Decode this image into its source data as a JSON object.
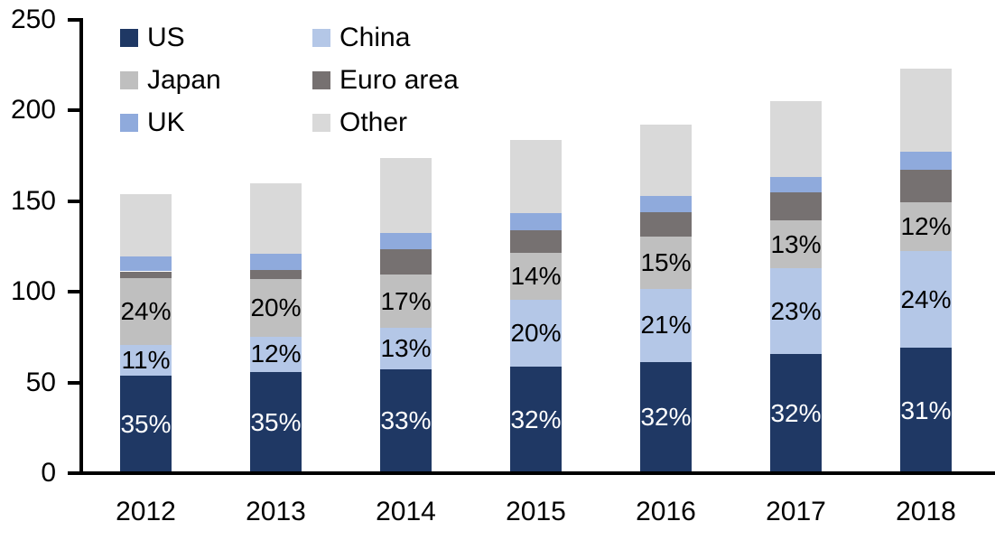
{
  "chart_data": {
    "type": "bar",
    "stacked": true,
    "title": "",
    "xlabel": "",
    "ylabel": "",
    "categories": [
      "2012",
      "2013",
      "2014",
      "2015",
      "2016",
      "2017",
      "2018"
    ],
    "series": [
      {
        "name": "US",
        "color": "#1F3864",
        "label_color": "#FFFFFF",
        "values": [
          53.9,
          56.0,
          57.4,
          58.9,
          61.4,
          65.6,
          69.1
        ],
        "labels": [
          "35%",
          "35%",
          "33%",
          "32%",
          "32%",
          "32%",
          "31%"
        ]
      },
      {
        "name": "China",
        "color": "#B4C7E7",
        "label_color": "#000000",
        "values": [
          16.9,
          19.2,
          22.6,
          36.8,
          40.3,
          47.2,
          53.5
        ],
        "labels": [
          "11%",
          "12%",
          "13%",
          "20%",
          "21%",
          "23%",
          "24%"
        ]
      },
      {
        "name": "Japan",
        "color": "#BFBFBF",
        "label_color": "#000000",
        "values": [
          37.0,
          32.0,
          29.6,
          25.8,
          28.8,
          26.7,
          26.8
        ],
        "labels": [
          "24%",
          "20%",
          "17%",
          "14%",
          "15%",
          "13%",
          "12%"
        ]
      },
      {
        "name": "Euro area",
        "color": "#767171",
        "values": [
          3.5,
          5.0,
          13.8,
          12.3,
          13.3,
          15.4,
          18.0
        ]
      },
      {
        "name": "UK",
        "color": "#8FAADC",
        "values": [
          8.3,
          8.8,
          9.1,
          9.7,
          9.0,
          8.6,
          10.0
        ]
      },
      {
        "name": "Other",
        "color": "#D9D9D9",
        "values": [
          34.4,
          39.0,
          41.5,
          40.5,
          39.2,
          41.5,
          45.6
        ]
      }
    ],
    "totals": [
      154,
      160,
      174,
      184,
      192,
      205,
      223
    ],
    "ylim": [
      0,
      250
    ],
    "yticks": [
      0,
      50,
      100,
      150,
      200,
      250
    ],
    "ytick_labels": [
      "0",
      "50",
      "100",
      "150",
      "200",
      "250"
    ],
    "grid": false,
    "legend": {
      "position": "top-left",
      "columns": 2,
      "order": [
        "US",
        "China",
        "Japan",
        "Euro area",
        "UK",
        "Other"
      ]
    }
  }
}
